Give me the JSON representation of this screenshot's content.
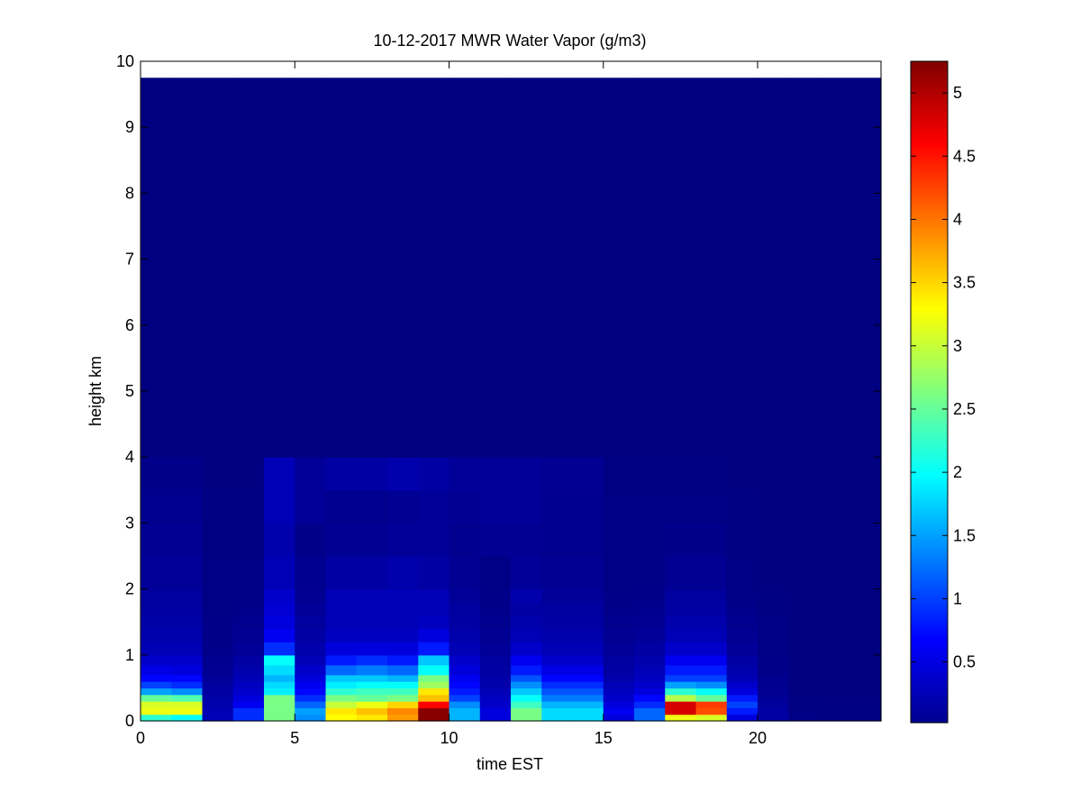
{
  "chart_data": {
    "type": "heatmap",
    "title": "10-12-2017 MWR Water Vapor (g/m3)",
    "xlabel": "time EST",
    "ylabel": "height km",
    "xlim": [
      0,
      24
    ],
    "ylim": [
      0,
      10
    ],
    "xticks": [
      "0",
      "5",
      "10",
      "15",
      "20"
    ],
    "yticks": [
      "0",
      "1",
      "2",
      "3",
      "4",
      "5",
      "6",
      "7",
      "8",
      "9",
      "10"
    ],
    "colorbar": {
      "colormap": "jet",
      "range": [
        0.02,
        5.25
      ],
      "ticks": [
        "0.5",
        "1",
        "1.5",
        "2",
        "2.5",
        "3",
        "3.5",
        "4",
        "4.5",
        "5"
      ]
    },
    "time_hours": [
      0,
      1,
      2,
      3,
      4,
      5,
      6,
      7,
      8,
      9,
      10,
      11,
      12,
      13,
      14,
      15,
      16,
      17,
      18,
      19,
      20,
      21,
      22,
      23
    ],
    "top_height_km": 9.75,
    "height_km": [
      0.05,
      0.15,
      0.25,
      0.35,
      0.45,
      0.55,
      0.65,
      0.8,
      0.9,
      1.1,
      1.3,
      1.5,
      1.7,
      1.9,
      2.25,
      2.75,
      3.25,
      3.75,
      6.0
    ],
    "height_edges_km": [
      0,
      0.1,
      0.2,
      0.3,
      0.4,
      0.5,
      0.6,
      0.7,
      0.85,
      1.0,
      1.2,
      1.4,
      1.6,
      1.8,
      2.0,
      2.5,
      3.0,
      3.5,
      4.0,
      9.75
    ],
    "values": [
      [
        2.2,
        3.2,
        3.1,
        2.5,
        1.5,
        1.0,
        0.7,
        0.55,
        0.4,
        0.3,
        0.25,
        0.22,
        0.2,
        0.18,
        0.15,
        0.12,
        0.1,
        0.08,
        0.03
      ],
      [
        2.0,
        3.2,
        3.1,
        2.4,
        1.4,
        0.9,
        0.7,
        0.5,
        0.4,
        0.3,
        0.25,
        0.22,
        0.2,
        0.18,
        0.15,
        0.12,
        0.1,
        0.08,
        0.03
      ],
      [
        0.3,
        0.3,
        0.25,
        0.22,
        0.2,
        0.18,
        0.15,
        0.12,
        0.1,
        0.08,
        0.08,
        0.07,
        0.06,
        0.05,
        0.05,
        0.04,
        0.04,
        0.03,
        0.02
      ],
      [
        0.9,
        0.9,
        0.6,
        0.5,
        0.4,
        0.35,
        0.3,
        0.25,
        0.2,
        0.15,
        0.12,
        0.1,
        0.08,
        0.06,
        0.05,
        0.04,
        0.04,
        0.03,
        0.02
      ],
      [
        2.6,
        2.6,
        2.6,
        2.6,
        1.9,
        1.8,
        1.6,
        1.8,
        2.0,
        0.9,
        0.6,
        0.5,
        0.45,
        0.4,
        0.3,
        0.25,
        0.3,
        0.3,
        0.03
      ],
      [
        1.4,
        1.5,
        1.2,
        0.9,
        0.7,
        0.6,
        0.5,
        0.4,
        0.3,
        0.25,
        0.2,
        0.18,
        0.15,
        0.12,
        0.1,
        0.08,
        0.15,
        0.15,
        0.03
      ],
      [
        3.3,
        3.4,
        3.0,
        2.6,
        2.2,
        1.9,
        1.7,
        1.2,
        0.8,
        0.5,
        0.35,
        0.3,
        0.3,
        0.3,
        0.2,
        0.12,
        0.1,
        0.2,
        0.03
      ],
      [
        3.4,
        3.6,
        3.2,
        2.5,
        2.3,
        2.0,
        1.7,
        1.3,
        0.9,
        0.5,
        0.35,
        0.3,
        0.3,
        0.3,
        0.2,
        0.12,
        0.1,
        0.2,
        0.03
      ],
      [
        3.8,
        3.9,
        3.5,
        2.6,
        2.3,
        2.0,
        1.6,
        1.2,
        0.8,
        0.5,
        0.35,
        0.3,
        0.3,
        0.3,
        0.25,
        0.15,
        0.12,
        0.25,
        0.03
      ],
      [
        5.2,
        5.2,
        4.6,
        3.6,
        3.4,
        2.8,
        2.6,
        2.0,
        1.7,
        0.8,
        0.5,
        0.35,
        0.3,
        0.3,
        0.2,
        0.15,
        0.15,
        0.2,
        0.03
      ],
      [
        1.6,
        1.6,
        1.4,
        1.0,
        0.8,
        0.7,
        0.6,
        0.5,
        0.4,
        0.3,
        0.25,
        0.2,
        0.18,
        0.15,
        0.12,
        0.1,
        0.12,
        0.15,
        0.03
      ],
      [
        0.5,
        0.5,
        0.4,
        0.35,
        0.3,
        0.25,
        0.22,
        0.2,
        0.18,
        0.15,
        0.12,
        0.1,
        0.08,
        0.07,
        0.06,
        0.12,
        0.15,
        0.15,
        0.03
      ],
      [
        2.6,
        2.6,
        2.3,
        2.0,
        1.7,
        1.4,
        1.1,
        0.8,
        0.6,
        0.4,
        0.3,
        0.25,
        0.2,
        0.25,
        0.15,
        0.12,
        0.15,
        0.15,
        0.03
      ],
      [
        1.8,
        1.8,
        1.6,
        1.3,
        1.1,
        0.9,
        0.7,
        0.55,
        0.4,
        0.3,
        0.25,
        0.2,
        0.18,
        0.15,
        0.12,
        0.1,
        0.1,
        0.12,
        0.03
      ],
      [
        1.8,
        1.8,
        1.6,
        1.3,
        1.1,
        0.9,
        0.7,
        0.55,
        0.4,
        0.3,
        0.25,
        0.2,
        0.18,
        0.15,
        0.12,
        0.1,
        0.1,
        0.12,
        0.03
      ],
      [
        0.5,
        0.6,
        0.5,
        0.4,
        0.35,
        0.3,
        0.25,
        0.2,
        0.18,
        0.15,
        0.12,
        0.1,
        0.08,
        0.07,
        0.06,
        0.05,
        0.05,
        0.04,
        0.03
      ],
      [
        1.2,
        1.2,
        0.9,
        0.7,
        0.5,
        0.4,
        0.35,
        0.3,
        0.25,
        0.2,
        0.15,
        0.12,
        0.1,
        0.08,
        0.06,
        0.05,
        0.05,
        0.04,
        0.03
      ],
      [
        3.2,
        4.8,
        4.8,
        2.9,
        2.2,
        1.5,
        1.0,
        0.8,
        0.6,
        0.4,
        0.3,
        0.25,
        0.2,
        0.18,
        0.12,
        0.08,
        0.05,
        0.04,
        0.03
      ],
      [
        3.1,
        4.2,
        4.3,
        2.5,
        2.0,
        1.4,
        1.0,
        0.8,
        0.6,
        0.4,
        0.3,
        0.25,
        0.2,
        0.18,
        0.12,
        0.08,
        0.05,
        0.04,
        0.03
      ],
      [
        0.5,
        0.8,
        1.0,
        0.8,
        0.5,
        0.4,
        0.3,
        0.25,
        0.2,
        0.15,
        0.12,
        0.1,
        0.08,
        0.06,
        0.05,
        0.04,
        0.04,
        0.03,
        0.02
      ],
      [
        0.2,
        0.2,
        0.18,
        0.15,
        0.12,
        0.1,
        0.1,
        0.08,
        0.08,
        0.06,
        0.05,
        0.05,
        0.04,
        0.04,
        0.03,
        0.03,
        0.03,
        0.02,
        0.02
      ],
      [
        0.05,
        0.05,
        0.04,
        0.04,
        0.03,
        0.03,
        0.03,
        0.03,
        0.03,
        0.03,
        0.03,
        0.02,
        0.02,
        0.02,
        0.02,
        0.02,
        0.02,
        0.02,
        0.02
      ],
      [
        0.04,
        0.04,
        0.04,
        0.03,
        0.03,
        0.03,
        0.03,
        0.03,
        0.03,
        0.03,
        0.02,
        0.02,
        0.02,
        0.02,
        0.02,
        0.02,
        0.02,
        0.02,
        0.02
      ],
      [
        0.04,
        0.04,
        0.04,
        0.03,
        0.03,
        0.03,
        0.03,
        0.03,
        0.03,
        0.03,
        0.02,
        0.02,
        0.02,
        0.02,
        0.02,
        0.02,
        0.02,
        0.02,
        0.02
      ]
    ]
  }
}
